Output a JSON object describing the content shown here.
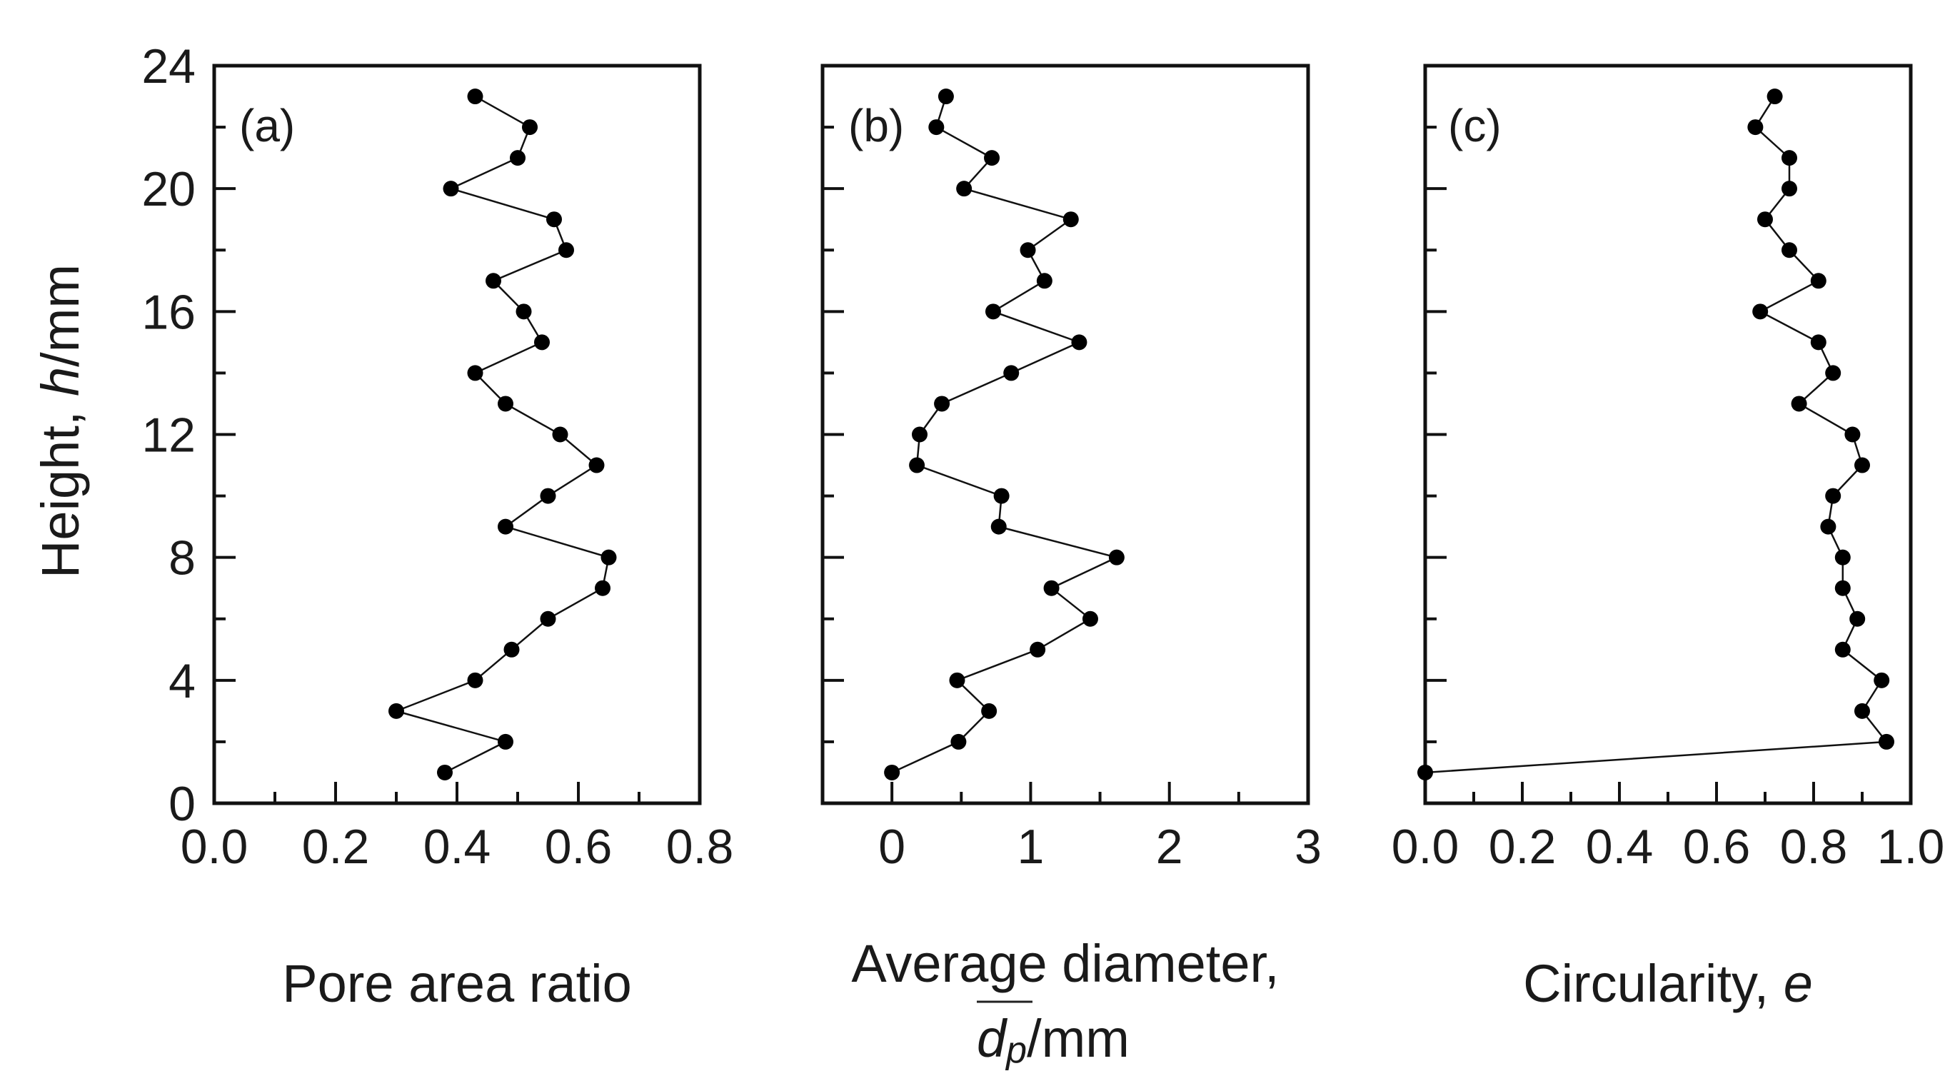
{
  "chart_data": [
    {
      "type": "line",
      "panel": "(a)",
      "xlabel": "Pore area ratio",
      "ylabel": "Height, h/mm",
      "ylabel_parts": [
        "Height, ",
        "h",
        "/mm"
      ],
      "xlim": [
        0,
        0.8
      ],
      "ylim": [
        0,
        24
      ],
      "xticks": [
        0.0,
        0.2,
        0.4,
        0.6,
        0.8
      ],
      "xtick_labels": [
        "0.0",
        "0.2",
        "0.4",
        "0.6",
        "0.8"
      ],
      "x_minor_ticks": [
        0.1,
        0.3,
        0.5,
        0.7
      ],
      "yticks": [
        0,
        4,
        8,
        12,
        16,
        20,
        24
      ],
      "ytick_labels": [
        "0",
        "4",
        "8",
        "12",
        "16",
        "20",
        "24"
      ],
      "y_minor_ticks": [
        2,
        6,
        10,
        14,
        18,
        22
      ],
      "series": [
        {
          "name": "Pore area ratio",
          "points": [
            [
              0.38,
              1
            ],
            [
              0.48,
              2
            ],
            [
              0.3,
              3
            ],
            [
              0.43,
              4
            ],
            [
              0.49,
              5
            ],
            [
              0.55,
              6
            ],
            [
              0.64,
              7
            ],
            [
              0.65,
              8
            ],
            [
              0.48,
              9
            ],
            [
              0.55,
              10
            ],
            [
              0.63,
              11
            ],
            [
              0.57,
              12
            ],
            [
              0.48,
              13
            ],
            [
              0.43,
              14
            ],
            [
              0.54,
              15
            ],
            [
              0.51,
              16
            ],
            [
              0.46,
              17
            ],
            [
              0.58,
              18
            ],
            [
              0.56,
              19
            ],
            [
              0.39,
              20
            ],
            [
              0.5,
              21
            ],
            [
              0.52,
              22
            ],
            [
              0.43,
              23
            ]
          ]
        }
      ]
    },
    {
      "type": "line",
      "panel": "(b)",
      "xlabel": "Average diameter,",
      "xlabel_line2_var": "dp",
      "xlabel_line2_main": "d",
      "xlabel_line2_sub": "p",
      "xlabel_line2_unit": "/mm",
      "xlim": [
        -0.5,
        3
      ],
      "ylim": [
        0,
        24
      ],
      "xticks": [
        0,
        1,
        2,
        3
      ],
      "xtick_labels": [
        "0",
        "1",
        "2",
        "3"
      ],
      "x_minor_ticks": [
        -0.5,
        0.5,
        1.5,
        2.5
      ],
      "yticks": [
        0,
        4,
        8,
        12,
        16,
        20,
        24
      ],
      "y_minor_ticks": [
        2,
        6,
        10,
        14,
        18,
        22
      ],
      "series": [
        {
          "name": "Average diameter",
          "points": [
            [
              0.0,
              1
            ],
            [
              0.48,
              2
            ],
            [
              0.7,
              3
            ],
            [
              0.47,
              4
            ],
            [
              1.05,
              5
            ],
            [
              1.43,
              6
            ],
            [
              1.15,
              7
            ],
            [
              1.62,
              8
            ],
            [
              0.77,
              9
            ],
            [
              0.79,
              10
            ],
            [
              0.18,
              11
            ],
            [
              0.2,
              12
            ],
            [
              0.36,
              13
            ],
            [
              0.86,
              14
            ],
            [
              1.35,
              15
            ],
            [
              0.73,
              16
            ],
            [
              1.1,
              17
            ],
            [
              0.98,
              18
            ],
            [
              1.29,
              19
            ],
            [
              0.52,
              20
            ],
            [
              0.72,
              21
            ],
            [
              0.32,
              22
            ],
            [
              0.39,
              23
            ]
          ]
        }
      ]
    },
    {
      "type": "line",
      "panel": "(c)",
      "xlabel": "Circularity, e",
      "xlabel_parts": [
        "Circularity, ",
        "e"
      ],
      "xlim": [
        0,
        1.0
      ],
      "ylim": [
        0,
        24
      ],
      "xticks": [
        0.0,
        0.2,
        0.4,
        0.6,
        0.8,
        1.0
      ],
      "xtick_labels": [
        "0.0",
        "0.2",
        "0.4",
        "0.6",
        "0.8",
        "1.0"
      ],
      "x_minor_ticks": [
        0.1,
        0.3,
        0.5,
        0.7,
        0.9
      ],
      "yticks": [
        0,
        4,
        8,
        12,
        16,
        20,
        24
      ],
      "y_minor_ticks": [
        2,
        6,
        10,
        14,
        18,
        22
      ],
      "series": [
        {
          "name": "Circularity",
          "points": [
            [
              0.0,
              1
            ],
            [
              0.95,
              2
            ],
            [
              0.9,
              3
            ],
            [
              0.94,
              4
            ],
            [
              0.86,
              5
            ],
            [
              0.89,
              6
            ],
            [
              0.86,
              7
            ],
            [
              0.86,
              8
            ],
            [
              0.83,
              9
            ],
            [
              0.84,
              10
            ],
            [
              0.9,
              11
            ],
            [
              0.88,
              12
            ],
            [
              0.77,
              13
            ],
            [
              0.84,
              14
            ],
            [
              0.81,
              15
            ],
            [
              0.69,
              16
            ],
            [
              0.81,
              17
            ],
            [
              0.75,
              18
            ],
            [
              0.7,
              19
            ],
            [
              0.75,
              20
            ],
            [
              0.75,
              21
            ],
            [
              0.68,
              22
            ],
            [
              0.72,
              23
            ]
          ]
        }
      ]
    }
  ]
}
